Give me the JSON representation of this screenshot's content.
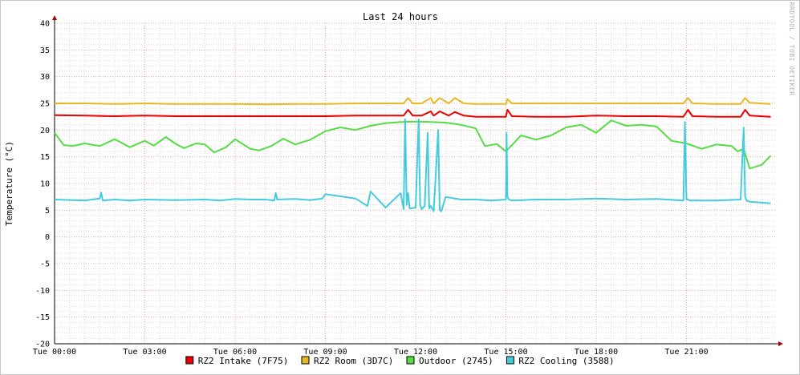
{
  "chart_data": {
    "type": "line",
    "title": "Last 24 hours",
    "ylabel": "Temperature (°C)",
    "xlabel": "",
    "ylim": [
      -20,
      40
    ],
    "xlim_hours": [
      0,
      24
    ],
    "yticks": [
      -20,
      -15,
      -10,
      -5,
      0,
      5,
      10,
      15,
      20,
      25,
      30,
      35,
      40
    ],
    "xticks": [
      {
        "hour": 0,
        "label": "Tue 00:00"
      },
      {
        "hour": 3,
        "label": "Tue 03:00"
      },
      {
        "hour": 6,
        "label": "Tue 06:00"
      },
      {
        "hour": 9,
        "label": "Tue 09:00"
      },
      {
        "hour": 12,
        "label": "Tue 12:00"
      },
      {
        "hour": 15,
        "label": "Tue 15:00"
      },
      {
        "hour": 18,
        "label": "Tue 18:00"
      },
      {
        "hour": 21,
        "label": "Tue 21:00"
      }
    ],
    "grid": true,
    "legend_position": "bottom",
    "watermark": "RRDTOOL / TOBI OETIKER",
    "series": [
      {
        "name": "RZ2 Intake (7F75)",
        "color": "#ee0000",
        "x": [
          0,
          1,
          2,
          3,
          4,
          5,
          6,
          7,
          8,
          9,
          10,
          11,
          11.6,
          11.75,
          11.9,
          12.2,
          12.5,
          12.6,
          12.8,
          13.1,
          13.3,
          13.6,
          14,
          15,
          15.05,
          15.2,
          16,
          17,
          18,
          19,
          20,
          20.9,
          21.05,
          21.2,
          22,
          22.8,
          22.95,
          23.1,
          23.8
        ],
        "values": [
          22.8,
          22.7,
          22.6,
          22.7,
          22.6,
          22.6,
          22.6,
          22.6,
          22.6,
          22.6,
          22.7,
          22.7,
          22.7,
          23.8,
          22.7,
          22.7,
          23.5,
          22.7,
          23.5,
          22.7,
          23.4,
          22.7,
          22.5,
          22.5,
          23.8,
          22.6,
          22.5,
          22.5,
          22.7,
          22.6,
          22.6,
          22.5,
          23.8,
          22.6,
          22.5,
          22.5,
          23.8,
          22.7,
          22.5
        ]
      },
      {
        "name": "RZ2 Room (3D7C)",
        "color": "#e8b822",
        "x": [
          0,
          1,
          2,
          3,
          4,
          5,
          6,
          7,
          8,
          9,
          10,
          11,
          11.6,
          11.75,
          11.9,
          12.2,
          12.5,
          12.6,
          12.8,
          13.1,
          13.3,
          13.6,
          14,
          15,
          15.05,
          15.2,
          16,
          17,
          18,
          19,
          20,
          20.9,
          21.05,
          21.2,
          22,
          22.8,
          22.95,
          23.1,
          23.8
        ],
        "values": [
          25.0,
          25.0,
          24.9,
          25.0,
          24.9,
          24.9,
          24.9,
          24.8,
          24.9,
          24.9,
          25.0,
          25.0,
          25.0,
          26.0,
          25.0,
          25.0,
          26.0,
          25.0,
          26.0,
          25.0,
          26.0,
          25.0,
          24.9,
          24.9,
          25.8,
          25.0,
          25.0,
          25.0,
          25.0,
          25.0,
          25.0,
          25.0,
          26.0,
          25.0,
          24.9,
          24.9,
          26.0,
          25.1,
          24.9
        ]
      },
      {
        "name": "Outdoor (2745)",
        "color": "#55dd44",
        "x": [
          0,
          0.3,
          0.6,
          1,
          1.5,
          2,
          2.5,
          3,
          3.3,
          3.7,
          4,
          4.3,
          4.7,
          5,
          5.3,
          5.7,
          6,
          6.5,
          6.8,
          7.2,
          7.6,
          8,
          8.5,
          9,
          9.5,
          10,
          10.5,
          11,
          11.5,
          12,
          12.5,
          13,
          13.5,
          14,
          14.3,
          14.7,
          15,
          15.5,
          16,
          16.5,
          17,
          17.5,
          18,
          18.5,
          19,
          19.5,
          20,
          20.5,
          21,
          21.5,
          22,
          22.5,
          22.7,
          22.9,
          23.1,
          23.5,
          23.8
        ],
        "values": [
          19.5,
          17.2,
          17.0,
          17.5,
          17.0,
          18.3,
          16.8,
          18.0,
          17.1,
          18.7,
          17.5,
          16.6,
          17.5,
          17.3,
          15.8,
          16.8,
          18.3,
          16.5,
          16.2,
          17.0,
          18.4,
          17.3,
          18.2,
          19.8,
          20.5,
          20.0,
          20.8,
          21.3,
          21.5,
          21.6,
          21.5,
          21.4,
          21.0,
          20.3,
          17.0,
          17.4,
          16.0,
          19.0,
          18.2,
          19.0,
          20.5,
          21.0,
          19.5,
          21.8,
          20.8,
          21.0,
          20.7,
          18.0,
          17.5,
          16.5,
          17.3,
          17.0,
          16.0,
          16.5,
          12.8,
          13.5,
          15.2
        ]
      },
      {
        "name": "RZ2 Cooling (3588)",
        "color": "#44ccdd",
        "x": [
          0,
          1,
          1.5,
          1.55,
          1.6,
          2,
          2.5,
          3,
          4,
          5,
          5.5,
          6,
          6.5,
          7,
          7.3,
          7.35,
          7.4,
          8,
          8.5,
          8.9,
          9,
          10,
          10.4,
          10.5,
          11,
          11.5,
          11.6,
          11.65,
          11.7,
          11.75,
          11.8,
          12,
          12.1,
          12.15,
          12.2,
          12.3,
          12.4,
          12.45,
          12.5,
          12.6,
          12.75,
          12.8,
          12.85,
          13,
          13.5,
          14,
          14.5,
          15,
          15.02,
          15.05,
          15.1,
          15.2,
          16,
          17,
          18,
          19,
          20,
          20.9,
          20.95,
          21.0,
          21.05,
          21.1,
          22,
          22.8,
          22.9,
          22.95,
          23.0,
          23.1,
          23.8
        ],
        "values": [
          7.0,
          6.8,
          7.2,
          8.3,
          6.8,
          7.0,
          6.8,
          7.0,
          6.9,
          7.0,
          6.8,
          7.1,
          7.0,
          7.0,
          6.8,
          8.2,
          7.0,
          7.1,
          6.9,
          7.2,
          8.0,
          7.2,
          5.8,
          8.5,
          5.5,
          8.2,
          5.2,
          22.0,
          6.0,
          8.2,
          5.3,
          5.5,
          22.0,
          6.0,
          5.2,
          5.8,
          19.5,
          5.3,
          5.8,
          4.8,
          20.0,
          5.0,
          4.8,
          7.5,
          7.0,
          7.0,
          6.8,
          7.0,
          19.5,
          7.5,
          7.0,
          6.8,
          7.0,
          7.0,
          7.2,
          7.0,
          7.1,
          6.8,
          21.5,
          7.0,
          7.0,
          6.8,
          6.8,
          7.0,
          20.5,
          7.5,
          6.8,
          6.6,
          6.3
        ]
      }
    ]
  }
}
